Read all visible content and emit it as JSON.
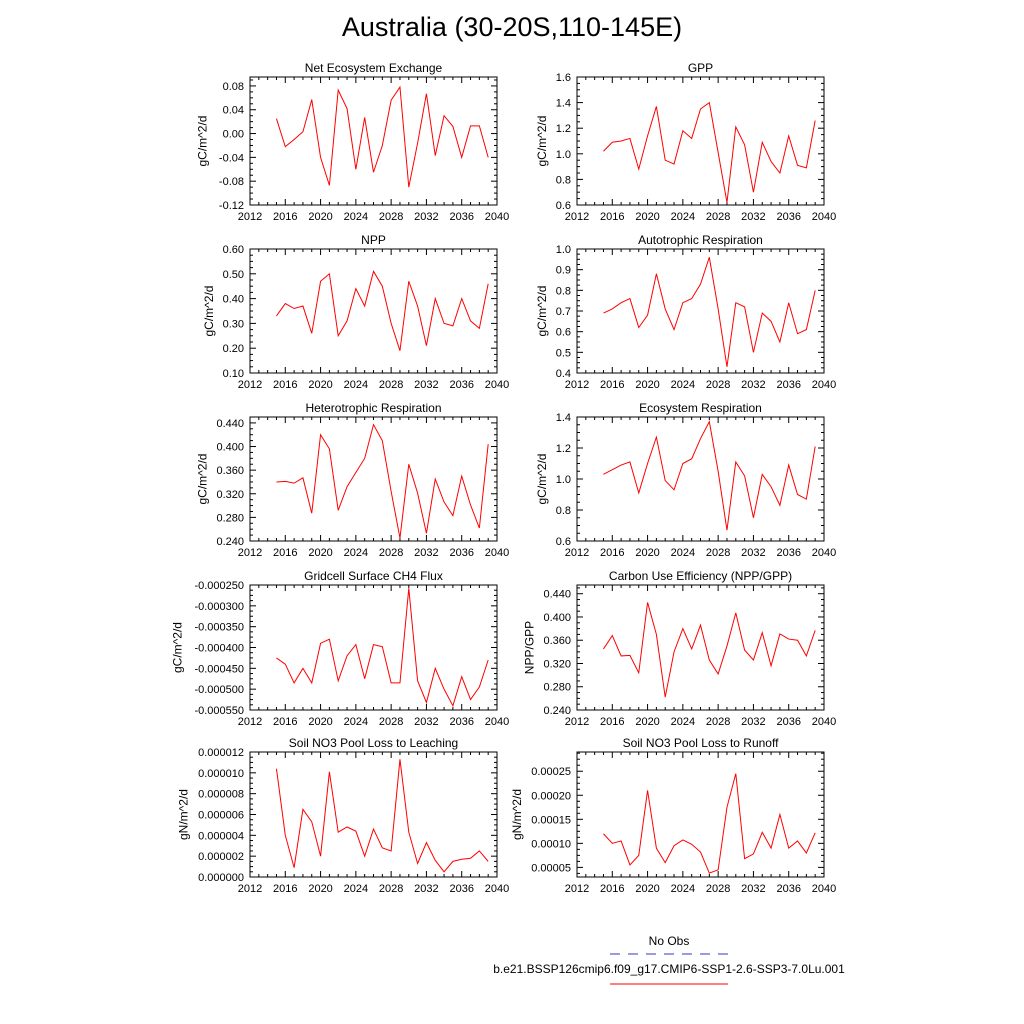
{
  "title": "Australia (30-20S,110-145E)",
  "colors": {
    "series": "#ff0000",
    "obs": "#3333cc",
    "axis": "#000000"
  },
  "legend": {
    "obs_label": "No Obs",
    "model_label": "b.e21.BSSP126cmip6.f09_g17.CMIP6-SSP1-2.6-SSP3-7.0Lu.001"
  },
  "chart_data": [
    {
      "type": "line",
      "title": "Net Ecosystem Exchange",
      "ylabel": "gC/m^2/d",
      "xlim": [
        2012,
        2040
      ],
      "xticks": [
        "2012",
        "2016",
        "2020",
        "2024",
        "2028",
        "2032",
        "2036",
        "2040"
      ],
      "ylim": [
        -0.12,
        0.095
      ],
      "yticks": [
        "-0.12",
        "-0.08",
        "-0.04",
        "0.00",
        "0.04",
        "0.08"
      ],
      "yticks_values": [
        -0.12,
        -0.08,
        -0.04,
        0.0,
        0.04,
        0.08
      ],
      "x": [
        2015,
        2016,
        2017,
        2018,
        2019,
        2020,
        2021,
        2022,
        2023,
        2024,
        2025,
        2026,
        2027,
        2028,
        2029,
        2030,
        2031,
        2032,
        2033,
        2034,
        2035,
        2036,
        2037,
        2038,
        2039
      ],
      "values": [
        0.025,
        -0.022,
        -0.01,
        0.003,
        0.057,
        -0.04,
        -0.087,
        0.073,
        0.042,
        -0.06,
        0.027,
        -0.065,
        -0.02,
        0.056,
        0.078,
        -0.09,
        -0.016,
        0.067,
        -0.037,
        0.03,
        0.012,
        -0.04,
        0.013,
        0.013,
        -0.04
      ]
    },
    {
      "type": "line",
      "title": "GPP",
      "ylabel": "gC/m^2/d",
      "xlim": [
        2012,
        2040
      ],
      "xticks": [
        "2012",
        "2016",
        "2020",
        "2024",
        "2028",
        "2032",
        "2036",
        "2040"
      ],
      "ylim": [
        0.6,
        1.6
      ],
      "yticks": [
        "0.6",
        "0.8",
        "1.0",
        "1.2",
        "1.4",
        "1.6"
      ],
      "yticks_values": [
        0.6,
        0.8,
        1.0,
        1.2,
        1.4,
        1.6
      ],
      "x": [
        2015,
        2016,
        2017,
        2018,
        2019,
        2020,
        2021,
        2022,
        2023,
        2024,
        2025,
        2026,
        2027,
        2028,
        2029,
        2030,
        2031,
        2032,
        2033,
        2034,
        2035,
        2036,
        2037,
        2038,
        2039
      ],
      "values": [
        1.02,
        1.09,
        1.1,
        1.12,
        0.88,
        1.14,
        1.37,
        0.95,
        0.92,
        1.18,
        1.12,
        1.35,
        1.4,
        1.01,
        0.62,
        1.21,
        1.07,
        0.7,
        1.09,
        0.94,
        0.85,
        1.14,
        0.91,
        0.89,
        1.26
      ]
    },
    {
      "type": "line",
      "title": "NPP",
      "ylabel": "gC/m^2/d",
      "xlim": [
        2012,
        2040
      ],
      "xticks": [
        "2012",
        "2016",
        "2020",
        "2024",
        "2028",
        "2032",
        "2036",
        "2040"
      ],
      "ylim": [
        0.1,
        0.6
      ],
      "yticks": [
        "0.10",
        "0.20",
        "0.30",
        "0.40",
        "0.50",
        "0.60"
      ],
      "yticks_values": [
        0.1,
        0.2,
        0.3,
        0.4,
        0.5,
        0.6
      ],
      "x": [
        2015,
        2016,
        2017,
        2018,
        2019,
        2020,
        2021,
        2022,
        2023,
        2024,
        2025,
        2026,
        2027,
        2028,
        2029,
        2030,
        2031,
        2032,
        2033,
        2034,
        2035,
        2036,
        2037,
        2038,
        2039
      ],
      "values": [
        0.33,
        0.38,
        0.36,
        0.37,
        0.26,
        0.47,
        0.5,
        0.25,
        0.31,
        0.44,
        0.37,
        0.51,
        0.45,
        0.3,
        0.19,
        0.47,
        0.37,
        0.21,
        0.4,
        0.3,
        0.29,
        0.4,
        0.31,
        0.28,
        0.46
      ]
    },
    {
      "type": "line",
      "title": "Autotrophic Respiration",
      "ylabel": "gC/m^2/d",
      "xlim": [
        2012,
        2040
      ],
      "xticks": [
        "2012",
        "2016",
        "2020",
        "2024",
        "2028",
        "2032",
        "2036",
        "2040"
      ],
      "ylim": [
        0.4,
        1.0
      ],
      "yticks": [
        "0.4",
        "0.5",
        "0.6",
        "0.7",
        "0.8",
        "0.9",
        "1.0"
      ],
      "yticks_values": [
        0.4,
        0.5,
        0.6,
        0.7,
        0.8,
        0.9,
        1.0
      ],
      "x": [
        2015,
        2016,
        2017,
        2018,
        2019,
        2020,
        2021,
        2022,
        2023,
        2024,
        2025,
        2026,
        2027,
        2028,
        2029,
        2030,
        2031,
        2032,
        2033,
        2034,
        2035,
        2036,
        2037,
        2038,
        2039
      ],
      "values": [
        0.69,
        0.71,
        0.74,
        0.76,
        0.62,
        0.68,
        0.88,
        0.71,
        0.61,
        0.74,
        0.76,
        0.83,
        0.96,
        0.71,
        0.43,
        0.74,
        0.72,
        0.5,
        0.69,
        0.65,
        0.55,
        0.74,
        0.59,
        0.61,
        0.8
      ]
    },
    {
      "type": "line",
      "title": "Heterotrophic Respiration",
      "ylabel": "gC/m^2/d",
      "xlim": [
        2012,
        2040
      ],
      "xticks": [
        "2012",
        "2016",
        "2020",
        "2024",
        "2028",
        "2032",
        "2036",
        "2040"
      ],
      "ylim": [
        0.24,
        0.45
      ],
      "yticks": [
        "0.240",
        "0.280",
        "0.320",
        "0.360",
        "0.400",
        "0.440"
      ],
      "yticks_values": [
        0.24,
        0.28,
        0.32,
        0.36,
        0.4,
        0.44
      ],
      "x": [
        2015,
        2016,
        2017,
        2018,
        2019,
        2020,
        2021,
        2022,
        2023,
        2024,
        2025,
        2026,
        2027,
        2028,
        2029,
        2030,
        2031,
        2032,
        2033,
        2034,
        2035,
        2036,
        2037,
        2038,
        2039
      ],
      "values": [
        0.34,
        0.341,
        0.338,
        0.347,
        0.287,
        0.42,
        0.396,
        0.292,
        0.332,
        0.356,
        0.38,
        0.437,
        0.41,
        0.324,
        0.245,
        0.37,
        0.321,
        0.253,
        0.345,
        0.306,
        0.283,
        0.35,
        0.301,
        0.262,
        0.404
      ]
    },
    {
      "type": "line",
      "title": "Ecosystem Respiration",
      "ylabel": "gC/m^2/d",
      "xlim": [
        2012,
        2040
      ],
      "xticks": [
        "2012",
        "2016",
        "2020",
        "2024",
        "2028",
        "2032",
        "2036",
        "2040"
      ],
      "ylim": [
        0.6,
        1.4
      ],
      "yticks": [
        "0.6",
        "0.8",
        "1.0",
        "1.2",
        "1.4"
      ],
      "yticks_values": [
        0.6,
        0.8,
        1.0,
        1.2,
        1.4
      ],
      "x": [
        2015,
        2016,
        2017,
        2018,
        2019,
        2020,
        2021,
        2022,
        2023,
        2024,
        2025,
        2026,
        2027,
        2028,
        2029,
        2030,
        2031,
        2032,
        2033,
        2034,
        2035,
        2036,
        2037,
        2038,
        2039
      ],
      "values": [
        1.03,
        1.06,
        1.09,
        1.11,
        0.91,
        1.1,
        1.27,
        0.99,
        0.93,
        1.1,
        1.13,
        1.26,
        1.37,
        1.05,
        0.67,
        1.11,
        1.02,
        0.75,
        1.03,
        0.95,
        0.83,
        1.09,
        0.9,
        0.87,
        1.21
      ]
    },
    {
      "type": "line",
      "title": "Gridcell Surface CH4 Flux",
      "ylabel": "gC/m^2/d",
      "xlim": [
        2012,
        2040
      ],
      "xticks": [
        "2012",
        "2016",
        "2020",
        "2024",
        "2028",
        "2032",
        "2036",
        "2040"
      ],
      "ylim": [
        -0.00055,
        -0.00025
      ],
      "yticks": [
        "-0.000550",
        "-0.000500",
        "-0.000450",
        "-0.000400",
        "-0.000350",
        "-0.000300",
        "-0.000250"
      ],
      "yticks_values": [
        -0.00055,
        -0.0005,
        -0.00045,
        -0.0004,
        -0.00035,
        -0.0003,
        -0.00025
      ],
      "x": [
        2015,
        2016,
        2017,
        2018,
        2019,
        2020,
        2021,
        2022,
        2023,
        2024,
        2025,
        2026,
        2027,
        2028,
        2029,
        2030,
        2031,
        2032,
        2033,
        2034,
        2035,
        2036,
        2037,
        2038,
        2039
      ],
      "values": [
        -0.000425,
        -0.00044,
        -0.000485,
        -0.00045,
        -0.000485,
        -0.00039,
        -0.00038,
        -0.00048,
        -0.00042,
        -0.000393,
        -0.000475,
        -0.000393,
        -0.000398,
        -0.000485,
        -0.000485,
        -0.000258,
        -0.00048,
        -0.000532,
        -0.00045,
        -0.0005,
        -0.00054,
        -0.00047,
        -0.000525,
        -0.000495,
        -0.00043
      ]
    },
    {
      "type": "line",
      "title": "Carbon Use Efficiency (NPP/GPP)",
      "ylabel": "NPP/GPP",
      "xlim": [
        2012,
        2040
      ],
      "xticks": [
        "2012",
        "2016",
        "2020",
        "2024",
        "2028",
        "2032",
        "2036",
        "2040"
      ],
      "ylim": [
        0.24,
        0.455
      ],
      "yticks": [
        "0.240",
        "0.280",
        "0.320",
        "0.360",
        "0.400",
        "0.440"
      ],
      "yticks_values": [
        0.24,
        0.28,
        0.32,
        0.36,
        0.4,
        0.44
      ],
      "x": [
        2015,
        2016,
        2017,
        2018,
        2019,
        2020,
        2021,
        2022,
        2023,
        2024,
        2025,
        2026,
        2027,
        2028,
        2029,
        2030,
        2031,
        2032,
        2033,
        2034,
        2035,
        2036,
        2037,
        2038,
        2039
      ],
      "values": [
        0.345,
        0.368,
        0.333,
        0.334,
        0.304,
        0.425,
        0.37,
        0.262,
        0.34,
        0.38,
        0.345,
        0.386,
        0.326,
        0.302,
        0.35,
        0.407,
        0.343,
        0.326,
        0.373,
        0.316,
        0.371,
        0.362,
        0.36,
        0.333,
        0.377
      ]
    },
    {
      "type": "line",
      "title": "Soil NO3 Pool Loss to Leaching",
      "ylabel": "gN/m^2/d",
      "xlim": [
        2012,
        2040
      ],
      "xticks": [
        "2012",
        "2016",
        "2020",
        "2024",
        "2028",
        "2032",
        "2036",
        "2040"
      ],
      "ylim": [
        0.0,
        1.2e-05
      ],
      "yticks": [
        "0.000000",
        "0.000002",
        "0.000004",
        "0.000006",
        "0.000008",
        "0.000010",
        "0.000012"
      ],
      "yticks_values": [
        0.0,
        2e-06,
        4e-06,
        6e-06,
        8e-06,
        1e-05,
        1.2e-05
      ],
      "x": [
        2015,
        2016,
        2017,
        2018,
        2019,
        2020,
        2021,
        2022,
        2023,
        2024,
        2025,
        2026,
        2027,
        2028,
        2029,
        2030,
        2031,
        2032,
        2033,
        2034,
        2035,
        2036,
        2037,
        2038,
        2039
      ],
      "values": [
        1.04e-05,
        4e-06,
        9e-07,
        6.5e-06,
        5.3e-06,
        2e-06,
        1.01e-05,
        4.3e-06,
        4.8e-06,
        4.4e-06,
        2e-06,
        4.6e-06,
        2.8e-06,
        2.5e-06,
        1.13e-05,
        4.3e-06,
        1.3e-06,
        3.3e-06,
        1.6e-06,
        5e-07,
        1.5e-06,
        1.7e-06,
        1.8e-06,
        2.5e-06,
        1.5e-06
      ]
    },
    {
      "type": "line",
      "title": "Soil NO3 Pool Loss to Runoff",
      "ylabel": "gN/m^2/d",
      "xlim": [
        2012,
        2040
      ],
      "xticks": [
        "2012",
        "2016",
        "2020",
        "2024",
        "2028",
        "2032",
        "2036",
        "2040"
      ],
      "ylim": [
        3e-05,
        0.00029
      ],
      "yticks": [
        "0.00005",
        "0.00010",
        "0.00015",
        "0.00020",
        "0.00025"
      ],
      "yticks_values": [
        5e-05,
        0.0001,
        0.00015,
        0.0002,
        0.00025
      ],
      "x": [
        2015,
        2016,
        2017,
        2018,
        2019,
        2020,
        2021,
        2022,
        2023,
        2024,
        2025,
        2026,
        2027,
        2028,
        2029,
        2030,
        2031,
        2032,
        2033,
        2034,
        2035,
        2036,
        2037,
        2038,
        2039
      ],
      "values": [
        0.00012,
        0.0001,
        0.000105,
        5.5e-05,
        7.5e-05,
        0.00021,
        9e-05,
        6e-05,
        9.5e-05,
        0.000107,
        9.8e-05,
        8.2e-05,
        3.8e-05,
        4.5e-05,
        0.000175,
        0.000245,
        6.8e-05,
        7.8e-05,
        0.000123,
        9e-05,
        0.00016,
        9e-05,
        0.000105,
        8e-05,
        0.000122
      ]
    }
  ]
}
